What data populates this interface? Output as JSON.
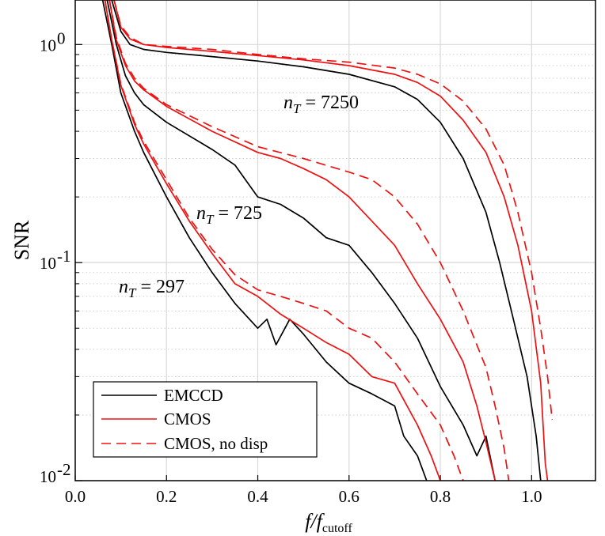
{
  "chart_data": {
    "type": "line",
    "title": "",
    "xlabel": "f/f",
    "xlabel_sub": "cutoff",
    "ylabel": "SNR",
    "x_scale": "linear",
    "y_scale": "log",
    "xlim": [
      0,
      1.14
    ],
    "ylim": [
      0.01,
      1.6
    ],
    "x_ticks": [
      "0.0",
      "0.2",
      "0.4",
      "0.6",
      "0.8",
      "1.0"
    ],
    "y_ticks": [
      {
        "base": "10",
        "exp": "0"
      },
      {
        "base": "10",
        "exp": "-1"
      },
      {
        "base": "10",
        "exp": "-2"
      }
    ],
    "grid": true,
    "legend_position": "bottom-left",
    "legend": [
      {
        "label": "EMCCD",
        "color": "#000000",
        "dash": "solid"
      },
      {
        "label": "CMOS",
        "color": "#ee1111",
        "dash": "solid"
      },
      {
        "label": "CMOS, no disp",
        "color": "#ee1111",
        "dash": "dashed"
      }
    ],
    "annotations": [
      {
        "var": "n",
        "sub": "T",
        "text": " = 7250"
      },
      {
        "var": "n",
        "sub": "T",
        "text": " = 725"
      },
      {
        "var": "n",
        "sub": "T",
        "text": " = 297"
      }
    ],
    "series": [
      {
        "group": "7250",
        "style": "emccd",
        "points": [
          [
            0.08,
            1.6
          ],
          [
            0.1,
            1.15
          ],
          [
            0.12,
            1.0
          ],
          [
            0.15,
            0.95
          ],
          [
            0.2,
            0.92
          ],
          [
            0.3,
            0.88
          ],
          [
            0.4,
            0.84
          ],
          [
            0.5,
            0.79
          ],
          [
            0.6,
            0.73
          ],
          [
            0.7,
            0.64
          ],
          [
            0.75,
            0.56
          ],
          [
            0.8,
            0.44
          ],
          [
            0.85,
            0.3
          ],
          [
            0.9,
            0.17
          ],
          [
            0.93,
            0.1
          ],
          [
            0.96,
            0.055
          ],
          [
            0.99,
            0.03
          ],
          [
            1.01,
            0.016
          ],
          [
            1.02,
            0.01
          ]
        ]
      },
      {
        "group": "7250",
        "style": "cmos",
        "points": [
          [
            0.085,
            1.6
          ],
          [
            0.1,
            1.2
          ],
          [
            0.12,
            1.06
          ],
          [
            0.15,
            1.0
          ],
          [
            0.2,
            0.97
          ],
          [
            0.3,
            0.93
          ],
          [
            0.4,
            0.89
          ],
          [
            0.5,
            0.85
          ],
          [
            0.6,
            0.8
          ],
          [
            0.7,
            0.73
          ],
          [
            0.75,
            0.67
          ],
          [
            0.8,
            0.58
          ],
          [
            0.85,
            0.45
          ],
          [
            0.9,
            0.32
          ],
          [
            0.94,
            0.2
          ],
          [
            0.97,
            0.12
          ],
          [
            1.0,
            0.06
          ],
          [
            1.02,
            0.028
          ],
          [
            1.03,
            0.012
          ],
          [
            1.035,
            0.01
          ]
        ]
      },
      {
        "group": "7250",
        "style": "nodisp",
        "points": [
          [
            0.085,
            1.6
          ],
          [
            0.1,
            1.22
          ],
          [
            0.12,
            1.08
          ],
          [
            0.15,
            1.0
          ],
          [
            0.2,
            0.98
          ],
          [
            0.3,
            0.95
          ],
          [
            0.4,
            0.9
          ],
          [
            0.5,
            0.86
          ],
          [
            0.6,
            0.83
          ],
          [
            0.7,
            0.78
          ],
          [
            0.75,
            0.73
          ],
          [
            0.8,
            0.66
          ],
          [
            0.85,
            0.55
          ],
          [
            0.9,
            0.41
          ],
          [
            0.94,
            0.28
          ],
          [
            0.97,
            0.17
          ],
          [
            1.0,
            0.09
          ],
          [
            1.02,
            0.05
          ],
          [
            1.035,
            0.03
          ],
          [
            1.045,
            0.019
          ]
        ]
      },
      {
        "group": "725",
        "style": "emccd",
        "points": [
          [
            0.07,
            1.6
          ],
          [
            0.09,
            1.0
          ],
          [
            0.11,
            0.72
          ],
          [
            0.13,
            0.6
          ],
          [
            0.15,
            0.53
          ],
          [
            0.2,
            0.44
          ],
          [
            0.3,
            0.33
          ],
          [
            0.35,
            0.28
          ],
          [
            0.4,
            0.2
          ],
          [
            0.45,
            0.185
          ],
          [
            0.5,
            0.16
          ],
          [
            0.55,
            0.13
          ],
          [
            0.6,
            0.12
          ],
          [
            0.65,
            0.09
          ],
          [
            0.7,
            0.065
          ],
          [
            0.75,
            0.045
          ],
          [
            0.8,
            0.027
          ],
          [
            0.85,
            0.018
          ],
          [
            0.88,
            0.013
          ],
          [
            0.9,
            0.016
          ],
          [
            0.92,
            0.01
          ]
        ]
      },
      {
        "group": "725",
        "style": "cmos",
        "points": [
          [
            0.075,
            1.6
          ],
          [
            0.09,
            1.05
          ],
          [
            0.11,
            0.8
          ],
          [
            0.13,
            0.68
          ],
          [
            0.15,
            0.62
          ],
          [
            0.2,
            0.52
          ],
          [
            0.3,
            0.4
          ],
          [
            0.4,
            0.32
          ],
          [
            0.45,
            0.3
          ],
          [
            0.5,
            0.27
          ],
          [
            0.55,
            0.24
          ],
          [
            0.6,
            0.2
          ],
          [
            0.65,
            0.155
          ],
          [
            0.7,
            0.12
          ],
          [
            0.75,
            0.08
          ],
          [
            0.8,
            0.055
          ],
          [
            0.85,
            0.035
          ],
          [
            0.88,
            0.022
          ],
          [
            0.9,
            0.015
          ],
          [
            0.92,
            0.01
          ]
        ]
      },
      {
        "group": "725",
        "style": "nodisp",
        "points": [
          [
            0.075,
            1.6
          ],
          [
            0.09,
            1.08
          ],
          [
            0.11,
            0.82
          ],
          [
            0.13,
            0.7
          ],
          [
            0.15,
            0.63
          ],
          [
            0.2,
            0.53
          ],
          [
            0.3,
            0.42
          ],
          [
            0.4,
            0.34
          ],
          [
            0.5,
            0.3
          ],
          [
            0.6,
            0.26
          ],
          [
            0.65,
            0.24
          ],
          [
            0.7,
            0.2
          ],
          [
            0.75,
            0.15
          ],
          [
            0.8,
            0.1
          ],
          [
            0.85,
            0.06
          ],
          [
            0.9,
            0.033
          ],
          [
            0.92,
            0.022
          ],
          [
            0.94,
            0.014
          ],
          [
            0.95,
            0.01
          ]
        ]
      },
      {
        "group": "297",
        "style": "emccd",
        "points": [
          [
            0.06,
            1.6
          ],
          [
            0.08,
            1.0
          ],
          [
            0.1,
            0.6
          ],
          [
            0.13,
            0.4
          ],
          [
            0.15,
            0.32
          ],
          [
            0.2,
            0.2
          ],
          [
            0.25,
            0.13
          ],
          [
            0.3,
            0.09
          ],
          [
            0.35,
            0.065
          ],
          [
            0.4,
            0.05
          ],
          [
            0.42,
            0.055
          ],
          [
            0.44,
            0.042
          ],
          [
            0.47,
            0.055
          ],
          [
            0.5,
            0.047
          ],
          [
            0.55,
            0.035
          ],
          [
            0.6,
            0.028
          ],
          [
            0.65,
            0.025
          ],
          [
            0.7,
            0.022
          ],
          [
            0.72,
            0.016
          ],
          [
            0.75,
            0.013
          ],
          [
            0.77,
            0.01
          ]
        ]
      },
      {
        "group": "297",
        "style": "cmos",
        "points": [
          [
            0.065,
            1.6
          ],
          [
            0.08,
            1.05
          ],
          [
            0.1,
            0.65
          ],
          [
            0.13,
            0.43
          ],
          [
            0.15,
            0.35
          ],
          [
            0.2,
            0.23
          ],
          [
            0.25,
            0.155
          ],
          [
            0.3,
            0.11
          ],
          [
            0.35,
            0.08
          ],
          [
            0.4,
            0.07
          ],
          [
            0.45,
            0.058
          ],
          [
            0.5,
            0.05
          ],
          [
            0.55,
            0.043
          ],
          [
            0.6,
            0.038
          ],
          [
            0.65,
            0.03
          ],
          [
            0.7,
            0.028
          ],
          [
            0.75,
            0.018
          ],
          [
            0.78,
            0.013
          ],
          [
            0.8,
            0.01
          ]
        ]
      },
      {
        "group": "297",
        "style": "nodisp",
        "points": [
          [
            0.065,
            1.6
          ],
          [
            0.08,
            1.05
          ],
          [
            0.1,
            0.66
          ],
          [
            0.13,
            0.44
          ],
          [
            0.15,
            0.36
          ],
          [
            0.2,
            0.24
          ],
          [
            0.25,
            0.16
          ],
          [
            0.3,
            0.115
          ],
          [
            0.35,
            0.088
          ],
          [
            0.4,
            0.075
          ],
          [
            0.45,
            0.07
          ],
          [
            0.5,
            0.065
          ],
          [
            0.55,
            0.06
          ],
          [
            0.6,
            0.05
          ],
          [
            0.65,
            0.045
          ],
          [
            0.7,
            0.035
          ],
          [
            0.75,
            0.025
          ],
          [
            0.8,
            0.018
          ],
          [
            0.83,
            0.013
          ],
          [
            0.85,
            0.01
          ]
        ]
      }
    ]
  }
}
